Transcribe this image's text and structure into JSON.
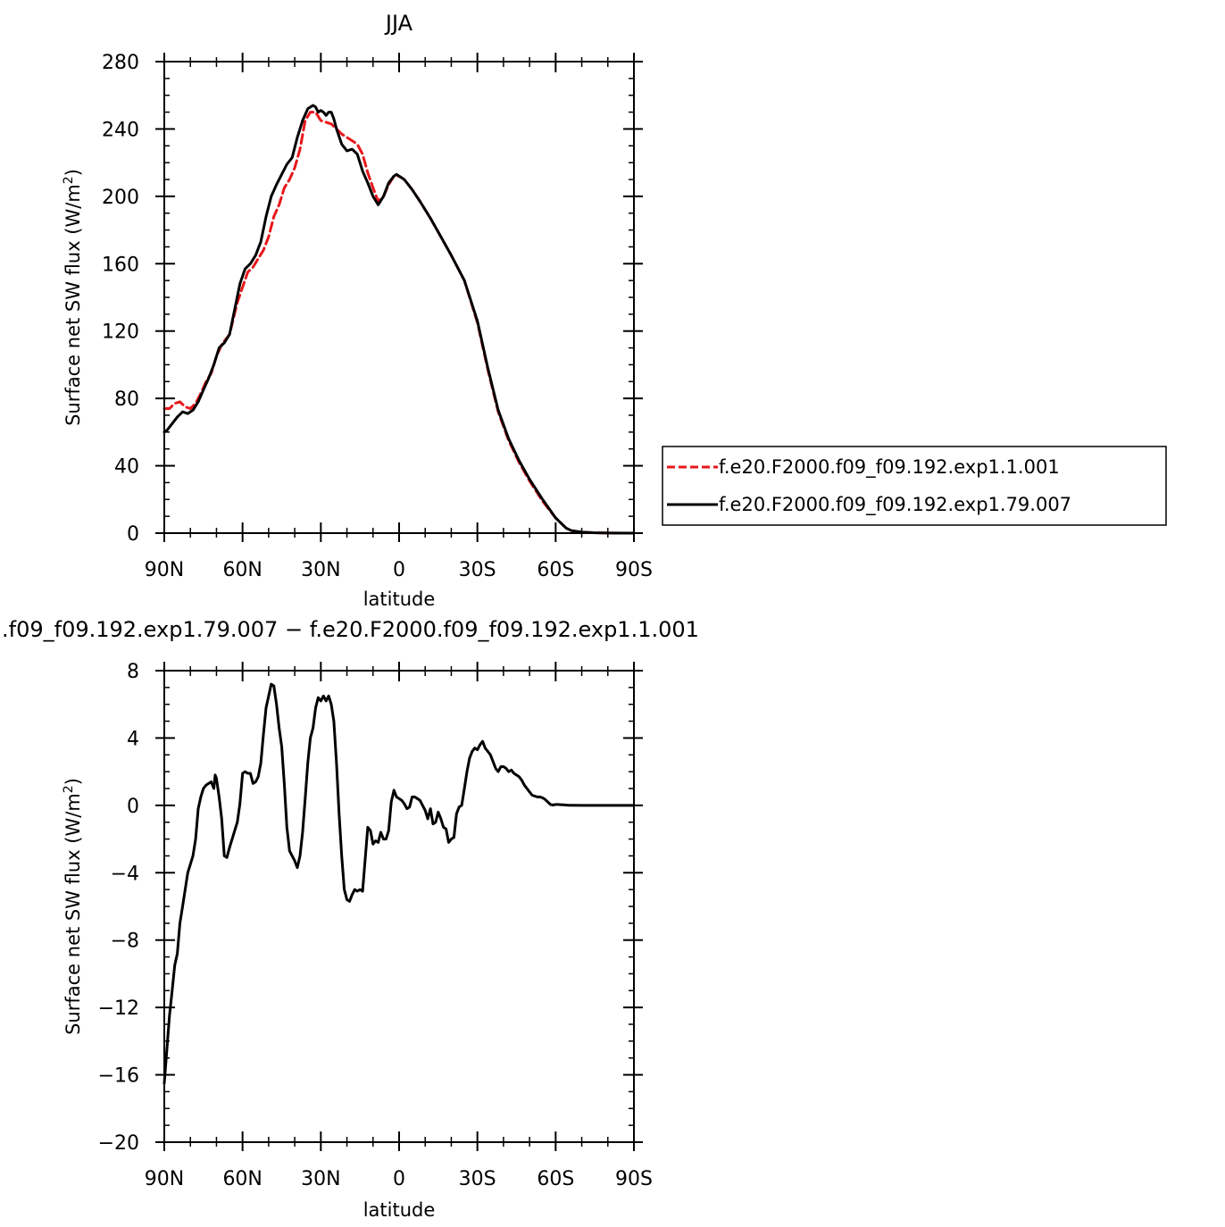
{
  "chart_data": [
    {
      "type": "line",
      "title": "JJA",
      "xlabel": "latitude",
      "ylabel": "Surface net SW flux (W/m²)",
      "ylabel_parts": {
        "main": "Surface net SW flux (W/m",
        "sup": "2",
        "end": ")"
      },
      "xlim": [
        90,
        -90
      ],
      "ylim": [
        0,
        280
      ],
      "xticks": [
        90,
        60,
        30,
        0,
        -30,
        -60,
        -90
      ],
      "xtick_labels": [
        "90N",
        "60N",
        "30N",
        "0",
        "30S",
        "60S",
        "90S"
      ],
      "yticks": [
        0,
        40,
        80,
        120,
        160,
        200,
        240,
        280
      ],
      "ytick_labels": [
        "0",
        "40",
        "80",
        "120",
        "160",
        "200",
        "240",
        "280"
      ],
      "grid": false,
      "legend": "right, outside plot",
      "series": [
        {
          "name": "f.e20.F2000.f09_f09.192.exp1.1.001",
          "color": "#e8171b",
          "dash": "dashed",
          "x": [
            90,
            88,
            86,
            84,
            82,
            80,
            78,
            76,
            74,
            72,
            70,
            68,
            65,
            62,
            58,
            56,
            52,
            50,
            48,
            46,
            44,
            42,
            40,
            38,
            36,
            34,
            32,
            30,
            28,
            26,
            24,
            22,
            20,
            18,
            16,
            14,
            12,
            10,
            8,
            6,
            4,
            2,
            0,
            -2,
            -5,
            -8,
            -12,
            -16,
            -20,
            -25,
            -30,
            -34,
            -38,
            -42,
            -46,
            -50,
            -55,
            -60,
            -62,
            -64,
            -66,
            -70,
            -75,
            -80,
            -90
          ],
          "y": [
            74,
            74,
            77,
            78,
            75,
            74,
            77,
            83,
            90,
            95,
            105,
            112,
            118,
            137,
            155,
            158,
            168,
            176,
            188,
            195,
            205,
            210,
            217,
            228,
            245,
            250,
            250,
            245,
            244,
            243,
            240,
            237,
            235,
            233,
            231,
            225,
            214,
            205,
            197,
            200,
            207,
            212,
            212,
            210,
            204,
            197,
            187,
            176,
            165,
            150,
            125,
            97,
            72,
            55,
            42,
            31,
            19,
            9,
            6,
            3,
            1.5,
            0.6,
            0.2,
            0.05,
            0
          ]
        },
        {
          "name": "f.e20.F2000.f09_f09.192.exp1.79.007",
          "color": "#000000",
          "dash": "solid",
          "x": [
            90,
            89,
            87,
            85,
            83,
            81,
            79,
            77,
            75,
            73,
            71,
            69,
            67,
            65,
            63,
            61,
            59,
            57,
            55,
            53,
            51,
            49,
            47,
            45,
            43,
            41,
            39,
            37,
            35,
            33,
            32,
            31,
            30,
            29,
            28,
            27,
            26,
            25,
            24,
            22,
            20,
            18,
            16,
            14,
            12,
            10,
            8,
            6,
            4,
            2,
            1,
            0,
            -2,
            -5,
            -8,
            -12,
            -16,
            -20,
            -25,
            -30,
            -34,
            -38,
            -42,
            -46,
            -50,
            -55,
            -60,
            -62,
            -64,
            -66,
            -70,
            -75,
            -80,
            -90
          ],
          "y": [
            60,
            61,
            65,
            69,
            72,
            71,
            73,
            78,
            85,
            92,
            100,
            110,
            113,
            118,
            133,
            148,
            157,
            160,
            165,
            173,
            188,
            200,
            207,
            213,
            219,
            223,
            235,
            245,
            252,
            254,
            253,
            250,
            251,
            250,
            248,
            250,
            250,
            246,
            240,
            231,
            227,
            228,
            225,
            215,
            208,
            200,
            195,
            200,
            208,
            212,
            213,
            212,
            210,
            204,
            197,
            187,
            176,
            165,
            150,
            126,
            98,
            73,
            56,
            43,
            32,
            20,
            9,
            6,
            3,
            1.5,
            0.6,
            0.2,
            0.05,
            0
          ]
        }
      ]
    },
    {
      "type": "line",
      "title": ".f09_f09.192.exp1.79.007 − f.e20.F2000.f09_f09.192.exp1.1.001",
      "xlabel": "latitude",
      "ylabel": "Surface net SW flux (W/m²)",
      "ylabel_parts": {
        "main": "Surface net SW flux (W/m",
        "sup": "2",
        "end": ")"
      },
      "xlim": [
        90,
        -90
      ],
      "ylim": [
        -20,
        8
      ],
      "xticks": [
        90,
        60,
        30,
        0,
        -30,
        -60,
        -90
      ],
      "xtick_labels": [
        "90N",
        "60N",
        "30N",
        "0",
        "30S",
        "60S",
        "90S"
      ],
      "yticks": [
        -20,
        -16,
        -12,
        -8,
        -4,
        0,
        4,
        8
      ],
      "ytick_labels": [
        "−20",
        "−16",
        "−12",
        "−8",
        "−4",
        "0",
        "4",
        "8"
      ],
      "grid": false,
      "series": [
        {
          "color": "#000000",
          "dash": "solid",
          "x": [
            90,
            89,
            88,
            87,
            86,
            85,
            84,
            83,
            82,
            81,
            80,
            79,
            78,
            77,
            76,
            75,
            74,
            73,
            72,
            71,
            70.5,
            70,
            69,
            68,
            67,
            66,
            65,
            64,
            63,
            62,
            61,
            60,
            59,
            58,
            57,
            56,
            55,
            54,
            53,
            52,
            51,
            50,
            49,
            48,
            47,
            46,
            45,
            44,
            43,
            42,
            41,
            40,
            39,
            38,
            37,
            36,
            35,
            34,
            33,
            32,
            31,
            30,
            29,
            28,
            27,
            26,
            25,
            24,
            23,
            22,
            21,
            20,
            19,
            18,
            17,
            16,
            15,
            14,
            13,
            12,
            11,
            10,
            9,
            8,
            7,
            6,
            5,
            4,
            3,
            2,
            1,
            0,
            -1,
            -2,
            -3,
            -4,
            -5,
            -6,
            -7,
            -8,
            -9,
            -10,
            -11,
            -12,
            -13,
            -14,
            -15,
            -16,
            -17,
            -18,
            -19,
            -20,
            -21,
            -22,
            -23,
            -24,
            -25,
            -26,
            -27,
            -28,
            -29,
            -30,
            -31,
            -32,
            -33,
            -34,
            -35,
            -36,
            -37,
            -38,
            -39,
            -40,
            -41,
            -42,
            -43,
            -44,
            -45,
            -46,
            -47,
            -48,
            -49,
            -50,
            -51,
            -52,
            -53,
            -54,
            -55,
            -56,
            -57,
            -58,
            -59,
            -60,
            -61,
            -62,
            -63,
            -64,
            -65,
            -66,
            -70,
            -80,
            -90
          ],
          "y": [
            -16.5,
            -14.5,
            -12.5,
            -11,
            -9.5,
            -8.8,
            -7,
            -6,
            -5,
            -4,
            -3.5,
            -3,
            -2,
            -0.2,
            0.5,
            1,
            1.2,
            1.3,
            1.4,
            1.0,
            1.8,
            1.6,
            0.5,
            -0.8,
            -3.0,
            -3.1,
            -2.5,
            -2,
            -1.5,
            -1,
            0.1,
            1.9,
            2.0,
            1.9,
            1.9,
            1.3,
            1.4,
            1.7,
            2.5,
            4.2,
            5.8,
            6.5,
            7.2,
            7.1,
            6.0,
            4.6,
            3.5,
            1.3,
            -1.3,
            -2.7,
            -3.0,
            -3.3,
            -3.7,
            -3.0,
            -1.6,
            0.4,
            2.5,
            4.0,
            4.6,
            5.8,
            6.4,
            6.2,
            6.5,
            6.2,
            6.5,
            6.0,
            5.0,
            2.5,
            -0.5,
            -3.0,
            -5.0,
            -5.6,
            -5.7,
            -5.3,
            -5.0,
            -5.1,
            -5.0,
            -5.1,
            -3.2,
            -1.3,
            -1.5,
            -2.3,
            -2.1,
            -2.2,
            -1.6,
            -2.0,
            -2.0,
            -1.5,
            0.2,
            0.9,
            0.5,
            0.4,
            0.3,
            0.1,
            -0.2,
            -0.1,
            0.5,
            0.5,
            0.4,
            0.3,
            0.0,
            -0.3,
            -0.8,
            -0.2,
            -1.1,
            -1.0,
            -0.4,
            -0.8,
            -1.3,
            -1.4,
            -2.2,
            -2.0,
            -1.9,
            -0.5,
            -0.1,
            0.0,
            1.0,
            2.0,
            2.8,
            3.2,
            3.4,
            3.3,
            3.6,
            3.8,
            3.4,
            3.2,
            3.0,
            2.6,
            2.2,
            2.0,
            2.3,
            2.3,
            2.2,
            2.0,
            2.1,
            1.9,
            1.8,
            1.7,
            1.5,
            1.2,
            1.0,
            0.8,
            0.6,
            0.55,
            0.5,
            0.5,
            0.45,
            0.35,
            0.2,
            0.05,
            0.02,
            0.05,
            0.05,
            0.04,
            0.03,
            0.02,
            0.01,
            0.01,
            0,
            0,
            0
          ]
        }
      ]
    }
  ]
}
